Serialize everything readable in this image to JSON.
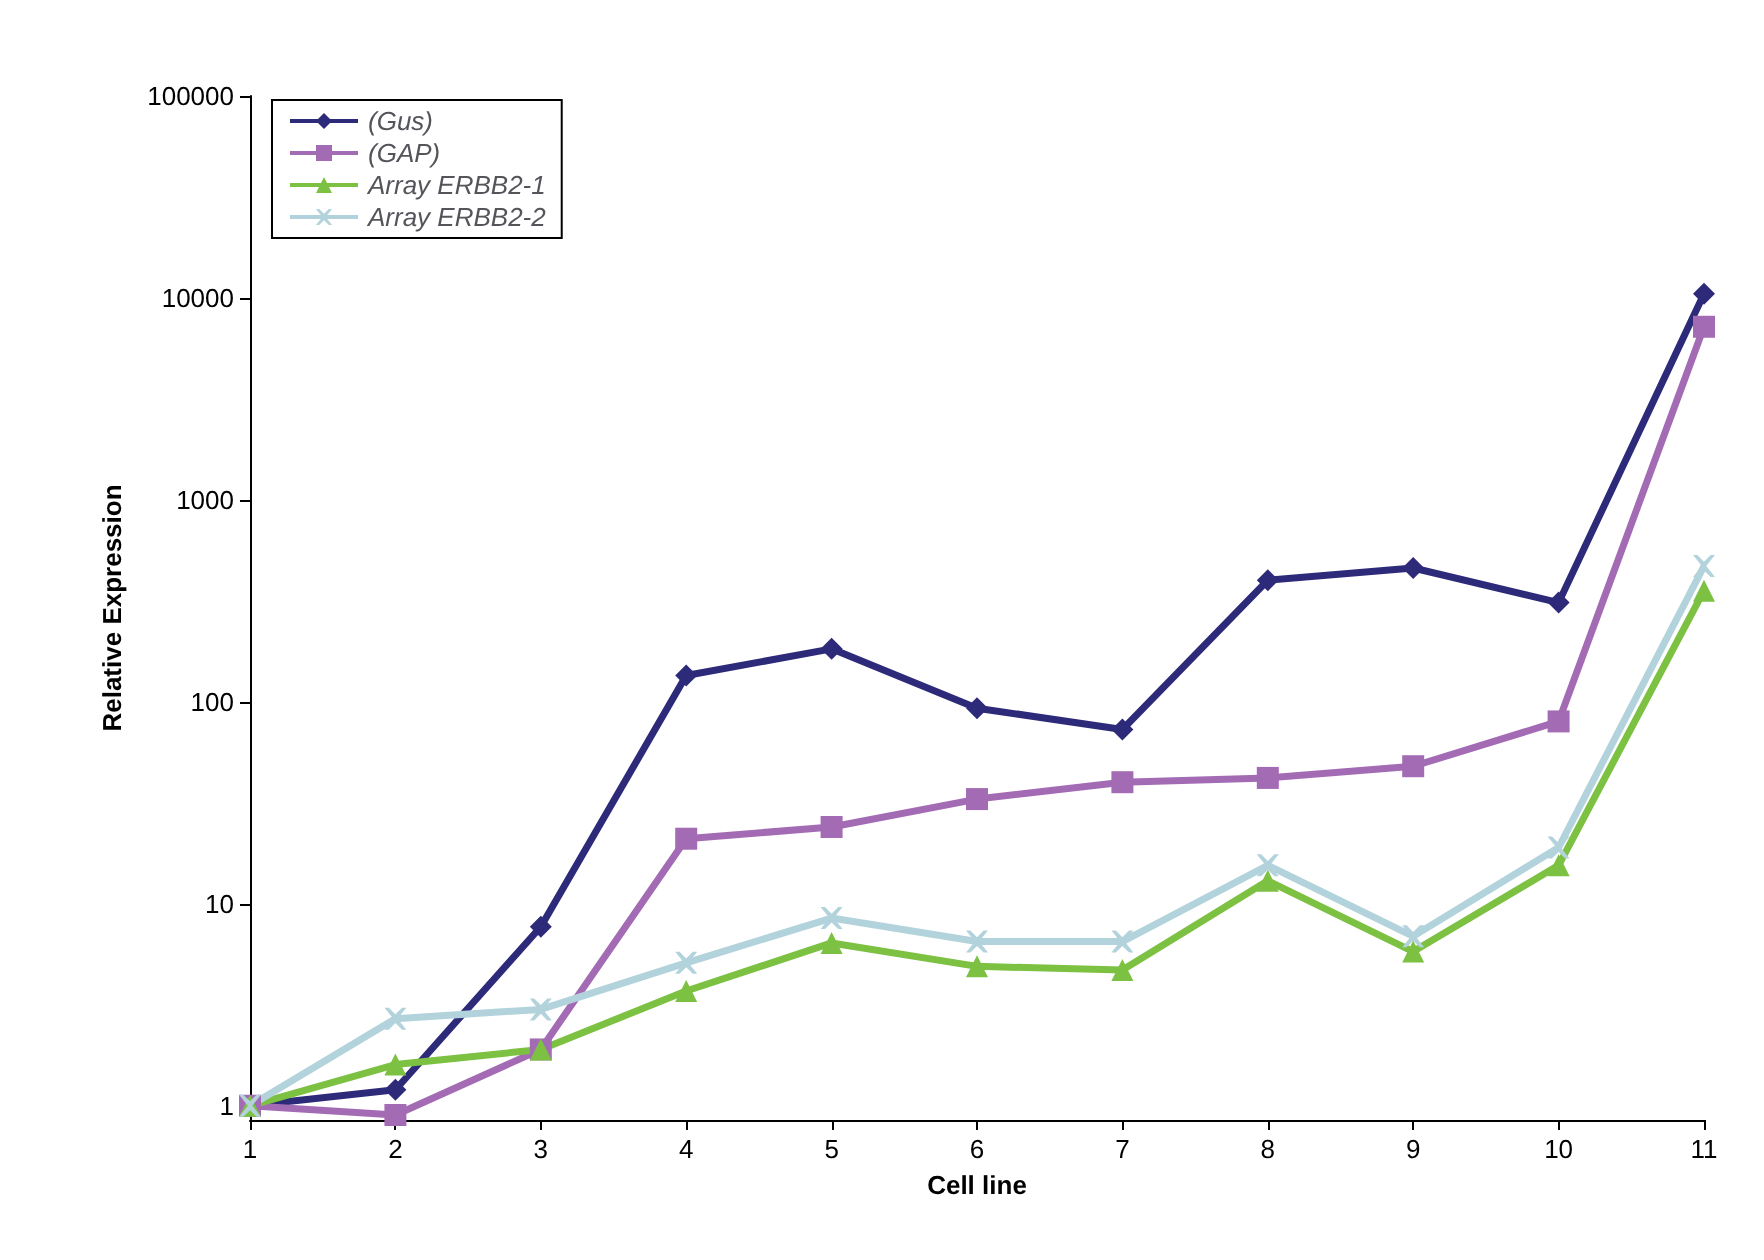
{
  "chart_data": {
    "type": "line",
    "xlabel": "Cell line",
    "ylabel": "Relative Expression",
    "categories": [
      "1",
      "2",
      "3",
      "4",
      "5",
      "6",
      "7",
      "8",
      "9",
      "10",
      "11"
    ],
    "series": [
      {
        "name": "(Gus)",
        "color": "#2e2a7a",
        "marker": "diamond",
        "values": [
          1,
          1.2,
          7.7,
          135,
          183,
          93,
          73,
          400,
          460,
          310,
          10500
        ]
      },
      {
        "name": "(GAP)",
        "color": "#a46bb5",
        "marker": "square",
        "values": [
          1,
          0.9,
          1.9,
          21,
          24,
          33,
          40,
          42,
          48,
          80,
          7200
        ]
      },
      {
        "name": "Array ERBB2-1",
        "color": "#7dc142",
        "marker": "triangle",
        "values": [
          1,
          1.6,
          1.9,
          3.7,
          6.4,
          4.9,
          4.7,
          13,
          5.8,
          15.5,
          355
        ]
      },
      {
        "name": "Array ERBB2-2",
        "color": "#b3d3dc",
        "marker": "cross",
        "values": [
          1,
          2.7,
          3,
          5.1,
          8.5,
          6.5,
          6.5,
          15.5,
          6.9,
          19,
          470
        ]
      }
    ],
    "log": "y",
    "ylim": [
      0.85,
      100000
    ],
    "yticks": [
      1,
      10,
      100,
      1000,
      10000,
      100000
    ],
    "grid": false,
    "legend": "top left"
  }
}
